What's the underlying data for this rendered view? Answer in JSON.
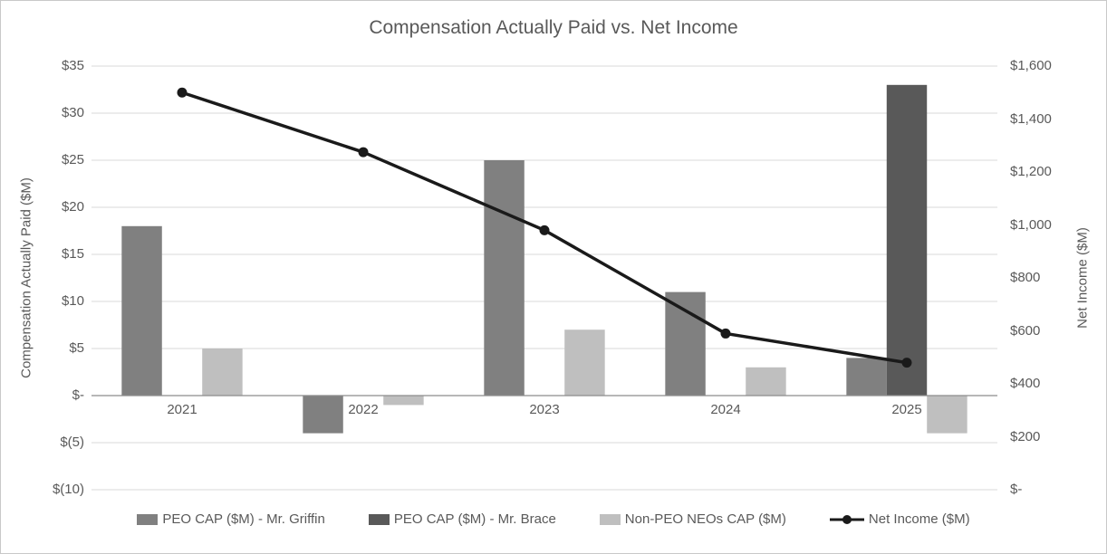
{
  "chart_data": {
    "type": "bar+line",
    "title": "Compensation Actually Paid vs. Net Income",
    "xlabel": "",
    "ylabel": "Compensation Actually Paid ($M)",
    "y2label": "Net Income ($M)",
    "categories": [
      "2021",
      "2022",
      "2023",
      "2024",
      "2025"
    ],
    "series": [
      {
        "name": "PEO CAP ($M) - Mr. Griffin",
        "kind": "bar",
        "axis": "left",
        "color": "#808080",
        "values": [
          18,
          -4,
          25,
          11,
          4
        ]
      },
      {
        "name": "PEO CAP ($M) - Mr. Brace",
        "kind": "bar",
        "axis": "left",
        "color": "#595959",
        "values": [
          null,
          null,
          null,
          null,
          33
        ]
      },
      {
        "name": "Non-PEO NEOs CAP ($M)",
        "kind": "bar",
        "axis": "left",
        "color": "#bfbfbf",
        "values": [
          5,
          -1,
          7,
          3,
          -4
        ]
      },
      {
        "name": "Net Income ($M)",
        "kind": "line",
        "axis": "right",
        "color": "#1a1a1a",
        "values": [
          1500,
          1275,
          980,
          590,
          480
        ]
      }
    ],
    "left_axis": {
      "min": -10,
      "max": 35,
      "tick_values": [
        35,
        30,
        25,
        20,
        15,
        10,
        5,
        0,
        -5,
        -10
      ],
      "tick_labels": [
        "$35",
        "$30",
        "$25",
        "$20",
        "$15",
        "$10",
        "$5",
        "$-",
        "$(5)",
        "$(10)"
      ]
    },
    "right_axis": {
      "min": 0,
      "max": 1600,
      "tick_values": [
        1600,
        1400,
        1200,
        1000,
        800,
        600,
        400,
        200,
        0
      ],
      "tick_labels": [
        "$1,600",
        "$1,400",
        "$1,200",
        "$1,000",
        "$800",
        "$600",
        "$400",
        "$200",
        "$-"
      ]
    },
    "grid": true,
    "legend_position": "bottom",
    "colors": {
      "gridline": "#d9d9d9",
      "zero_axis": "#8c8c8c",
      "text": "#595959",
      "background": "#ffffff"
    }
  }
}
